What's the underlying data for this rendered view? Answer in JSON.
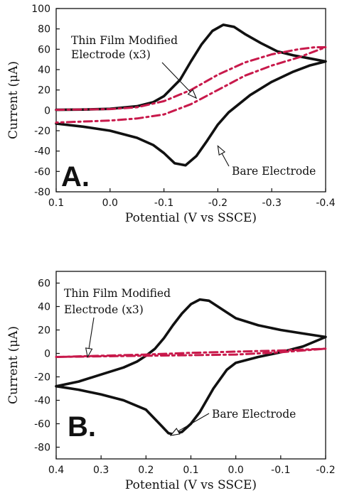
{
  "chart_data": [
    {
      "type": "line",
      "panel_label": "A.",
      "xlabel": "Potential (V vs SSCE)",
      "ylabel": "Current (μA)",
      "xlim": [
        0.1,
        -0.4
      ],
      "ylim": [
        -80,
        100
      ],
      "x_ticks": [
        "0.1",
        "0.0",
        "-0.1",
        "-0.2",
        "-0.3",
        "-0.4"
      ],
      "y_ticks": [
        "100",
        "80",
        "60",
        "40",
        "20",
        "0",
        "-20",
        "-40",
        "-60",
        "-80"
      ],
      "grid": false,
      "colors": {
        "bare": "#111111",
        "film": "#c8194b"
      },
      "series": [
        {
          "style": "solid",
          "x": [
            0.1,
            0.05,
            0.0,
            -0.05,
            -0.08,
            -0.1,
            -0.13,
            -0.15,
            -0.17,
            -0.19,
            -0.21,
            -0.23,
            -0.25,
            -0.28,
            -0.31,
            -0.34,
            -0.37,
            -0.4,
            -0.37,
            -0.34,
            -0.3,
            -0.26,
            -0.22,
            -0.2,
            -0.18,
            -0.16,
            -0.14,
            -0.12,
            -0.1,
            -0.08,
            -0.05,
            0.0,
            0.05,
            0.1
          ],
          "y": [
            0.5,
            0.8,
            1.5,
            4,
            8,
            14,
            30,
            48,
            65,
            78,
            84,
            82,
            75,
            66,
            58,
            54,
            51,
            48,
            44,
            38,
            28,
            15,
            -2,
            -14,
            -30,
            -45,
            -54,
            -52,
            -42,
            -34,
            -27,
            -20,
            -16,
            -13
          ]
        },
        {
          "style": "dash-dot",
          "x": [
            0.1,
            0.0,
            -0.05,
            -0.1,
            -0.15,
            -0.2,
            -0.25,
            -0.3,
            -0.35,
            -0.38,
            -0.4,
            -0.38,
            -0.35,
            -0.3,
            -0.25,
            -0.2,
            -0.15,
            -0.1,
            -0.05,
            0.0,
            0.05,
            0.1
          ],
          "y": [
            0.5,
            1.2,
            3,
            9,
            20,
            35,
            47,
            55,
            60,
            62,
            62,
            58,
            52,
            44,
            34,
            20,
            6,
            -4,
            -8,
            -10,
            -11,
            -12
          ]
        }
      ],
      "annotations": [
        {
          "text": "Thin Film Modified",
          "arrow_to": [
            -0.16,
            12
          ]
        },
        {
          "text": "Electrode (x3)"
        },
        {
          "text": "Bare Electrode",
          "arrow_to": [
            -0.2,
            -35
          ]
        }
      ]
    },
    {
      "type": "line",
      "panel_label": "B.",
      "xlabel": "Potential (V vs SSCE)",
      "ylabel": "Current (μA)",
      "xlim": [
        0.4,
        -0.2
      ],
      "ylim": [
        -90,
        70
      ],
      "x_ticks": [
        "0.4",
        "0.3",
        "0.2",
        "0.1",
        "0.0",
        "-0.1",
        "-0.2"
      ],
      "y_ticks": [
        "60",
        "40",
        "20",
        "0",
        "-20",
        "-40",
        "-60",
        "-80"
      ],
      "grid": false,
      "colors": {
        "bare": "#111111",
        "film": "#c8194b"
      },
      "series": [
        {
          "style": "solid",
          "x": [
            0.4,
            0.35,
            0.3,
            0.25,
            0.22,
            0.2,
            0.18,
            0.16,
            0.14,
            0.12,
            0.1,
            0.08,
            0.06,
            0.04,
            0.02,
            0.0,
            -0.05,
            -0.1,
            -0.15,
            -0.2,
            -0.15,
            -0.1,
            -0.05,
            0.0,
            0.02,
            0.05,
            0.08,
            0.1,
            0.12,
            0.14,
            0.15,
            0.17,
            0.2,
            0.25,
            0.3,
            0.35,
            0.4
          ],
          "y": [
            -28,
            -24,
            -18,
            -12,
            -7,
            -2,
            4,
            13,
            24,
            34,
            42,
            46,
            45,
            40,
            35,
            30,
            24,
            20,
            17,
            14,
            6,
            1,
            -3,
            -8,
            -14,
            -30,
            -50,
            -60,
            -67,
            -69,
            -68,
            -60,
            -48,
            -40,
            -35,
            -31,
            -28
          ]
        },
        {
          "style": "dash-dot",
          "x": [
            0.4,
            0.3,
            0.2,
            0.1,
            0.0,
            -0.1,
            -0.2,
            -0.1,
            0.0,
            0.1,
            0.2,
            0.3,
            0.4
          ],
          "y": [
            -3,
            -2,
            -1,
            0.5,
            1.5,
            2.5,
            4,
            1,
            -1,
            -1.5,
            -2,
            -2.5,
            -3
          ]
        }
      ],
      "annotations": [
        {
          "text": "Thin Film Modified",
          "arrow_to": [
            0.33,
            -3
          ]
        },
        {
          "text": "Electrode (x3)"
        },
        {
          "text": "Bare Electrode",
          "arrow_to": [
            0.145,
            -70
          ]
        }
      ]
    }
  ]
}
